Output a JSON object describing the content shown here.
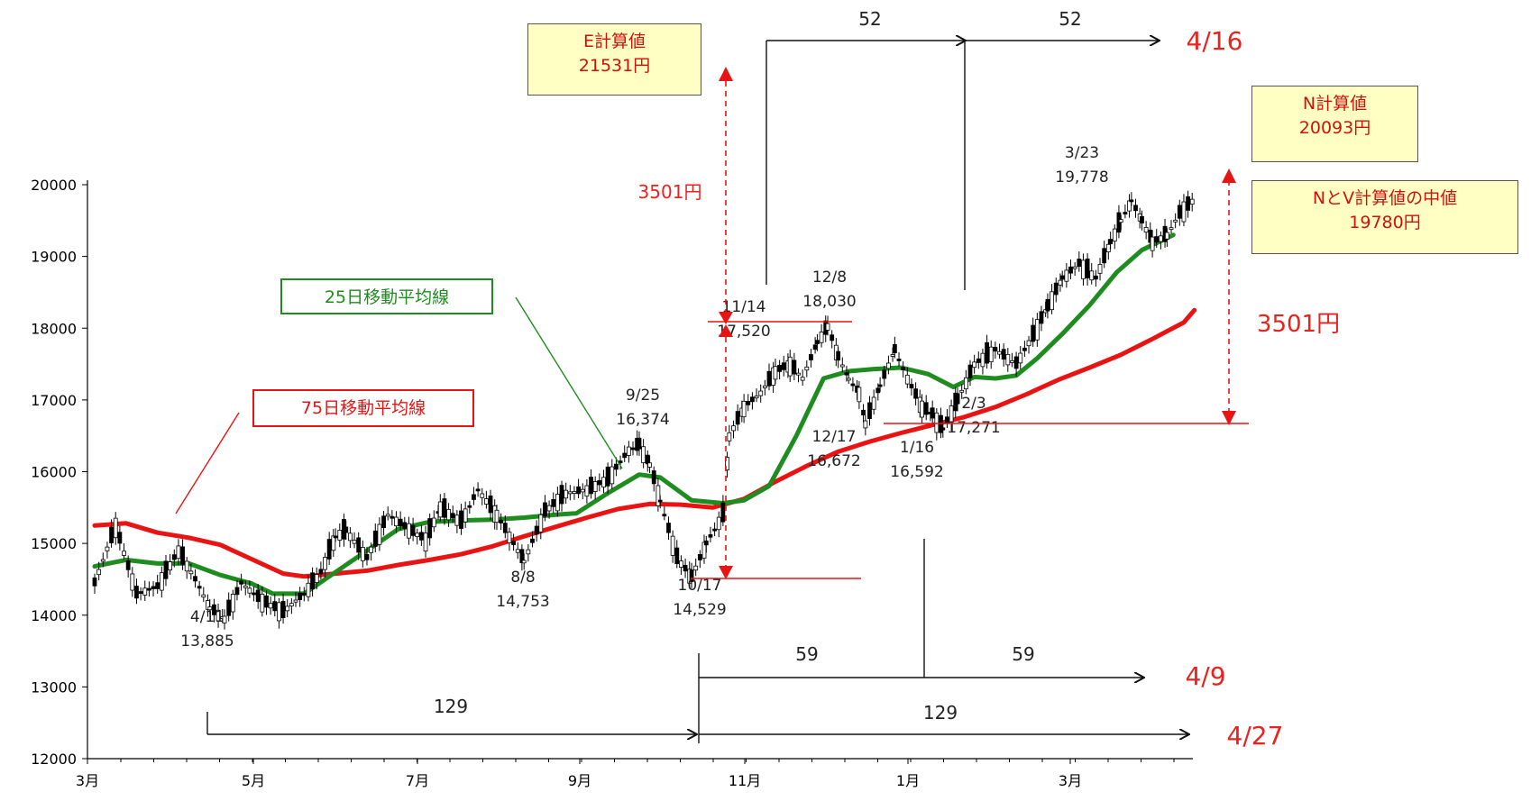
{
  "chart_data": {
    "type": "line",
    "y_ticks": [
      "20000",
      "19000",
      "18000",
      "17000",
      "16000",
      "15000",
      "14000",
      "13000",
      "12000"
    ],
    "ylim": [
      12000,
      20000
    ],
    "x_tick_labels": [
      "3月",
      "5月",
      "7月",
      "9月",
      "11月",
      "1月",
      "3月"
    ],
    "series": [
      {
        "name": "25日移動平均線",
        "color": "#1e8c1e",
        "points": [
          [
            0,
            14680
          ],
          [
            15,
            14770
          ],
          [
            30,
            14720
          ],
          [
            45,
            14720
          ],
          [
            60,
            14560
          ],
          [
            75,
            14440
          ],
          [
            85,
            14300
          ],
          [
            100,
            14300
          ],
          [
            115,
            14600
          ],
          [
            130,
            14900
          ],
          [
            145,
            15200
          ],
          [
            160,
            15300
          ],
          [
            175,
            15320
          ],
          [
            190,
            15330
          ],
          [
            205,
            15360
          ],
          [
            220,
            15400
          ],
          [
            230,
            15420
          ],
          [
            245,
            15700
          ],
          [
            260,
            15960
          ],
          [
            270,
            15920
          ],
          [
            285,
            15600
          ],
          [
            300,
            15560
          ],
          [
            310,
            15600
          ],
          [
            322,
            15800
          ],
          [
            335,
            16500
          ],
          [
            348,
            17300
          ],
          [
            360,
            17400
          ],
          [
            372,
            17430
          ],
          [
            385,
            17450
          ],
          [
            398,
            17360
          ],
          [
            410,
            17180
          ],
          [
            420,
            17320
          ],
          [
            430,
            17300
          ],
          [
            440,
            17340
          ],
          [
            450,
            17580
          ],
          [
            462,
            17920
          ],
          [
            475,
            18320
          ],
          [
            488,
            18780
          ],
          [
            500,
            19090
          ],
          [
            515,
            19300
          ]
        ]
      },
      {
        "name": "75日移動平均線",
        "color": "#e81414",
        "points": [
          [
            0,
            15250
          ],
          [
            15,
            15280
          ],
          [
            30,
            15150
          ],
          [
            45,
            15080
          ],
          [
            60,
            14980
          ],
          [
            75,
            14780
          ],
          [
            90,
            14580
          ],
          [
            100,
            14540
          ],
          [
            115,
            14580
          ],
          [
            130,
            14620
          ],
          [
            145,
            14700
          ],
          [
            160,
            14770
          ],
          [
            175,
            14850
          ],
          [
            190,
            14960
          ],
          [
            205,
            15100
          ],
          [
            220,
            15230
          ],
          [
            235,
            15360
          ],
          [
            250,
            15480
          ],
          [
            265,
            15550
          ],
          [
            280,
            15540
          ],
          [
            295,
            15500
          ],
          [
            310,
            15620
          ],
          [
            325,
            15860
          ],
          [
            340,
            16080
          ],
          [
            355,
            16280
          ],
          [
            370,
            16420
          ],
          [
            385,
            16540
          ],
          [
            400,
            16650
          ],
          [
            415,
            16760
          ],
          [
            430,
            16900
          ],
          [
            445,
            17080
          ],
          [
            460,
            17280
          ],
          [
            475,
            17450
          ],
          [
            490,
            17630
          ],
          [
            505,
            17850
          ],
          [
            520,
            18080
          ],
          [
            525,
            18250
          ]
        ]
      }
    ],
    "price_points": [
      [
        0,
        14450
      ],
      [
        10,
        15250
      ],
      [
        20,
        14300
      ],
      [
        30,
        14400
      ],
      [
        40,
        14900
      ],
      [
        48,
        14500
      ],
      [
        55,
        14100
      ],
      [
        62,
        13950
      ],
      [
        70,
        14450
      ],
      [
        80,
        14200
      ],
      [
        90,
        14050
      ],
      [
        100,
        14300
      ],
      [
        108,
        14600
      ],
      [
        115,
        15100
      ],
      [
        120,
        15180
      ],
      [
        130,
        14800
      ],
      [
        140,
        15400
      ],
      [
        150,
        15200
      ],
      [
        158,
        15050
      ],
      [
        165,
        15500
      ],
      [
        175,
        15300
      ],
      [
        183,
        15750
      ],
      [
        192,
        15400
      ],
      [
        200,
        15000
      ],
      [
        205,
        14750
      ],
      [
        215,
        15450
      ],
      [
        225,
        15700
      ],
      [
        235,
        15750
      ],
      [
        245,
        15900
      ],
      [
        255,
        16300
      ],
      [
        260,
        16374
      ],
      [
        265,
        16100
      ],
      [
        270,
        15600
      ],
      [
        278,
        14800
      ],
      [
        285,
        14529
      ],
      [
        292,
        15000
      ],
      [
        300,
        15400
      ],
      [
        303,
        16500
      ],
      [
        310,
        16900
      ],
      [
        318,
        17100
      ],
      [
        325,
        17400
      ],
      [
        332,
        17500
      ],
      [
        338,
        17300
      ],
      [
        345,
        17800
      ],
      [
        350,
        18030
      ],
      [
        355,
        17600
      ],
      [
        360,
        17300
      ],
      [
        365,
        17100
      ],
      [
        368,
        16672
      ],
      [
        375,
        17200
      ],
      [
        382,
        17700
      ],
      [
        388,
        17300
      ],
      [
        395,
        16900
      ],
      [
        400,
        16800
      ],
      [
        405,
        16592
      ],
      [
        412,
        17000
      ],
      [
        420,
        17500
      ],
      [
        430,
        17700
      ],
      [
        440,
        17500
      ],
      [
        448,
        17900
      ],
      [
        455,
        18300
      ],
      [
        462,
        18700
      ],
      [
        470,
        18900
      ],
      [
        478,
        18700
      ],
      [
        485,
        19200
      ],
      [
        490,
        19500
      ],
      [
        495,
        19778
      ],
      [
        500,
        19500
      ],
      [
        505,
        19200
      ],
      [
        512,
        19300
      ],
      [
        518,
        19600
      ],
      [
        525,
        19800
      ]
    ],
    "annotations": [
      {
        "date": "4/11",
        "value": "13,885"
      },
      {
        "date": "8/8",
        "value": "14,753"
      },
      {
        "date": "9/25",
        "value": "16,374"
      },
      {
        "date": "10/17",
        "value": "14,529"
      },
      {
        "date": "11/14",
        "value": "17,520"
      },
      {
        "date": "12/8",
        "value": "18,030"
      },
      {
        "date": "12/17",
        "value": "16,672"
      },
      {
        "date": "1/16",
        "value": "16,592"
      },
      {
        "date": "2/3",
        "value": "17,271"
      },
      {
        "date": "3/23",
        "value": "19,778"
      }
    ],
    "day_spans": [
      "52",
      "52",
      "59",
      "59",
      "129",
      "129"
    ],
    "target_dates": [
      "4/16",
      "4/9",
      "4/27"
    ],
    "diff_labels": [
      "3501円",
      "3501円"
    ],
    "boxes": {
      "e_calc": [
        "E計算値",
        "21531円"
      ],
      "n_calc": [
        "N計算値",
        "20093円"
      ],
      "nv_mid": [
        "NとV計算値の中値",
        "19780円"
      ]
    },
    "legend": {
      "ma25": "25日移動平均線",
      "ma75": "75日移動平均線"
    }
  }
}
